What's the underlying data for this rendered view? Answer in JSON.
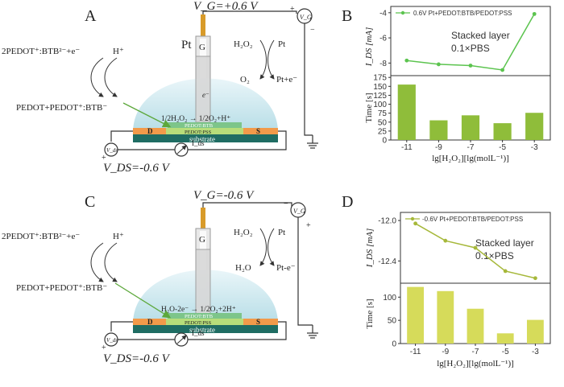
{
  "panels": {
    "A": {
      "letter": "A",
      "gate_voltage": "V_G=+0.6 V",
      "ds_voltage": "V_DS=-0.6 V",
      "vg_meter": "V_G",
      "vds_meter": "V_ds",
      "ids_label": "I_ds",
      "electrode": "Pt",
      "gate_tag": "G",
      "left_reaction_top": "2PEDOT⁺:BTB²⁻+e⁻",
      "left_reaction_h": "H⁺",
      "left_reaction_bottom": "PEDOT+PEDOT⁺:BTB⁻",
      "right_reaction_h2o2": "H₂O₂",
      "right_reaction_pt": "Pt",
      "right_reaction_o2": "O₂",
      "right_reaction_pte": "Pt+e⁻",
      "electron": "e⁻",
      "drop_reaction": "1/2H₂O₂ → 1/2O₂+H⁺",
      "layer_btb": "PEDOT:BTB",
      "layer_pss": "PEDOT:PSS",
      "substrate": "substrate",
      "drain": "D",
      "source": "S",
      "plus_top": "+",
      "minus_top": "−",
      "plus_bottom": "+",
      "minus_bottom": "−"
    },
    "C": {
      "letter": "C",
      "gate_voltage": "V_G=-0.6 V",
      "ds_voltage": "V_DS=-0.6 V",
      "vg_meter": "V_G",
      "vds_meter": "V_ds",
      "ids_label": "I_ds",
      "gate_tag": "G",
      "left_reaction_top": "2PEDOT⁺:BTB²⁻+e⁻",
      "left_reaction_h": "H⁺",
      "left_reaction_bottom": "PEDOT+PEDOT⁺:BTB⁻",
      "right_reaction_h2o2": "H₂O₂",
      "right_reaction_pt": "Pt",
      "right_reaction_h2o": "H₂O",
      "right_reaction_pte": "Pt-e⁻",
      "drop_reaction": "H₂O-2e⁻ → 1/2O₂+2H⁺",
      "layer_btb": "PEDOT:BTB",
      "layer_pss": "PEDOT:PSS",
      "substrate": "substrate",
      "drain": "D",
      "source": "S",
      "plus_top": "+",
      "minus_top": "−",
      "plus_bottom": "+",
      "minus_bottom": "−"
    }
  },
  "charts": {
    "B": {
      "letter": "B",
      "legend": "0.6V Pt+PEDOT:BTB/PEDOT:PSS",
      "annotation_line1": "Stacked layer",
      "annotation_line2": "0.1×PBS",
      "top_ylabel": "I_DS [mA]",
      "bottom_ylabel": "Time [s]",
      "xlabel": "lg[H₂O₂][lg(molL⁻¹)]",
      "categories": [
        "-11",
        "-9",
        "-7",
        "-5",
        "-3"
      ],
      "line_color": "#5cc44f",
      "bar_color": "#8fbd3a",
      "top": {
        "ylim": [
          -9,
          -3.5
        ],
        "yticks": [
          "-4",
          "-6",
          "-8"
        ],
        "ytick_values": [
          -4,
          -6,
          -8
        ],
        "values": [
          -7.8,
          -8.1,
          -8.2,
          -8.55,
          -4.1
        ]
      },
      "bottom": {
        "ylim": [
          0,
          180
        ],
        "yticks": [
          "0",
          "25",
          "50",
          "75",
          "100",
          "125",
          "150",
          "175"
        ],
        "ytick_values": [
          0,
          25,
          50,
          75,
          100,
          125,
          150,
          175
        ],
        "values": [
          155,
          55,
          69,
          47,
          76
        ]
      }
    },
    "D": {
      "letter": "D",
      "legend": "-0.6V Pt+PEDOT:BTB/PEDOT:PSS",
      "annotation_line1": "Stacked layer",
      "annotation_line2": "0.1×PBS",
      "top_ylabel": "I_DS [mA]",
      "bottom_ylabel": "Time [s]",
      "xlabel": "lg[H₂O₂][lg(molL⁻¹)]",
      "categories": [
        "-11",
        "-9",
        "-7",
        "-5",
        "-3"
      ],
      "line_color": "#a6b83a",
      "bar_color": "#d6db5a",
      "top": {
        "ylim": [
          -12.62,
          -11.92
        ],
        "yticks": [
          "-12.0",
          "-12.4"
        ],
        "ytick_values": [
          -12.0,
          -12.4
        ],
        "values": [
          -12.03,
          -12.2,
          -12.27,
          -12.5,
          -12.57
        ]
      },
      "bottom": {
        "ylim": [
          0,
          130
        ],
        "yticks": [
          "0",
          "50",
          "100"
        ],
        "ytick_values": [
          0,
          50,
          100
        ],
        "values": [
          122,
          113,
          75,
          22,
          51
        ]
      }
    }
  }
}
